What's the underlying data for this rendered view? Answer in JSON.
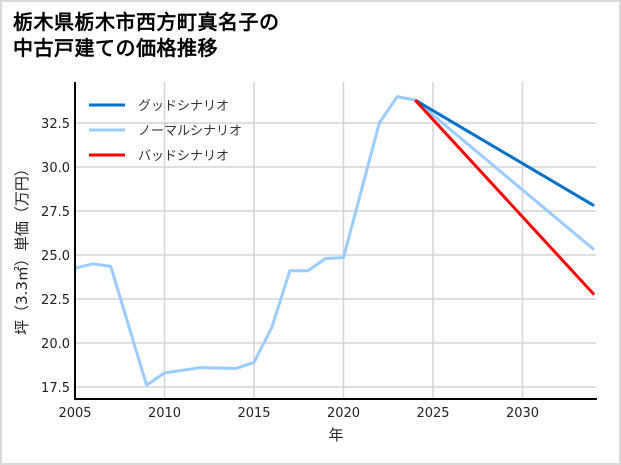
{
  "title_line1": "栃木県栃木市西方町真名子の",
  "title_line2": "中古戸建ての価格推移",
  "chart_data": {
    "type": "line",
    "title": "栃木県栃木市西方町真名子の中古戸建ての価格推移",
    "xlabel": "年",
    "ylabel": "坪（3.3㎡）単価（万円）",
    "xlim": [
      2005,
      2034
    ],
    "ylim": [
      16.8,
      34.8
    ],
    "x_ticks": [
      2005,
      2010,
      2015,
      2020,
      2025,
      2030
    ],
    "y_ticks": [
      17.5,
      20.0,
      22.5,
      25.0,
      27.5,
      30.0,
      32.5
    ],
    "grid": true,
    "legend_position": "upper left",
    "series": [
      {
        "name": "グッドシナリオ",
        "color": "#0070c8",
        "x": [
          2024,
          2034
        ],
        "values": [
          33.8,
          27.8
        ]
      },
      {
        "name": "ノーマルシナリオ",
        "color": "#99ccff",
        "x": [
          2005,
          2006,
          2007,
          2009,
          2010,
          2011,
          2012,
          2014,
          2015,
          2016,
          2017,
          2018,
          2019,
          2020,
          2022,
          2023,
          2024,
          2034
        ],
        "values": [
          24.25,
          24.5,
          24.35,
          17.6,
          18.3,
          18.45,
          18.6,
          18.55,
          18.9,
          20.9,
          24.1,
          24.1,
          24.8,
          24.85,
          32.5,
          34.0,
          33.8,
          25.3
        ]
      },
      {
        "name": "バッドシナリオ",
        "color": "#ff0000",
        "x": [
          2024,
          2034
        ],
        "values": [
          33.8,
          22.75
        ]
      }
    ]
  },
  "legend": [
    {
      "label": "グッドシナリオ",
      "color": "#0070c8"
    },
    {
      "label": "ノーマルシナリオ",
      "color": "#99ccff"
    },
    {
      "label": "バッドシナリオ",
      "color": "#ff0000"
    }
  ],
  "x_tick_labels": [
    "2005",
    "2010",
    "2015",
    "2020",
    "2025",
    "2030"
  ],
  "y_tick_labels": [
    "32.5",
    "30.0",
    "27.5",
    "25.0",
    "22.5",
    "20.0",
    "17.5"
  ],
  "xlabel": "年",
  "ylabel": "坪（3.3㎡）単価（万円）"
}
